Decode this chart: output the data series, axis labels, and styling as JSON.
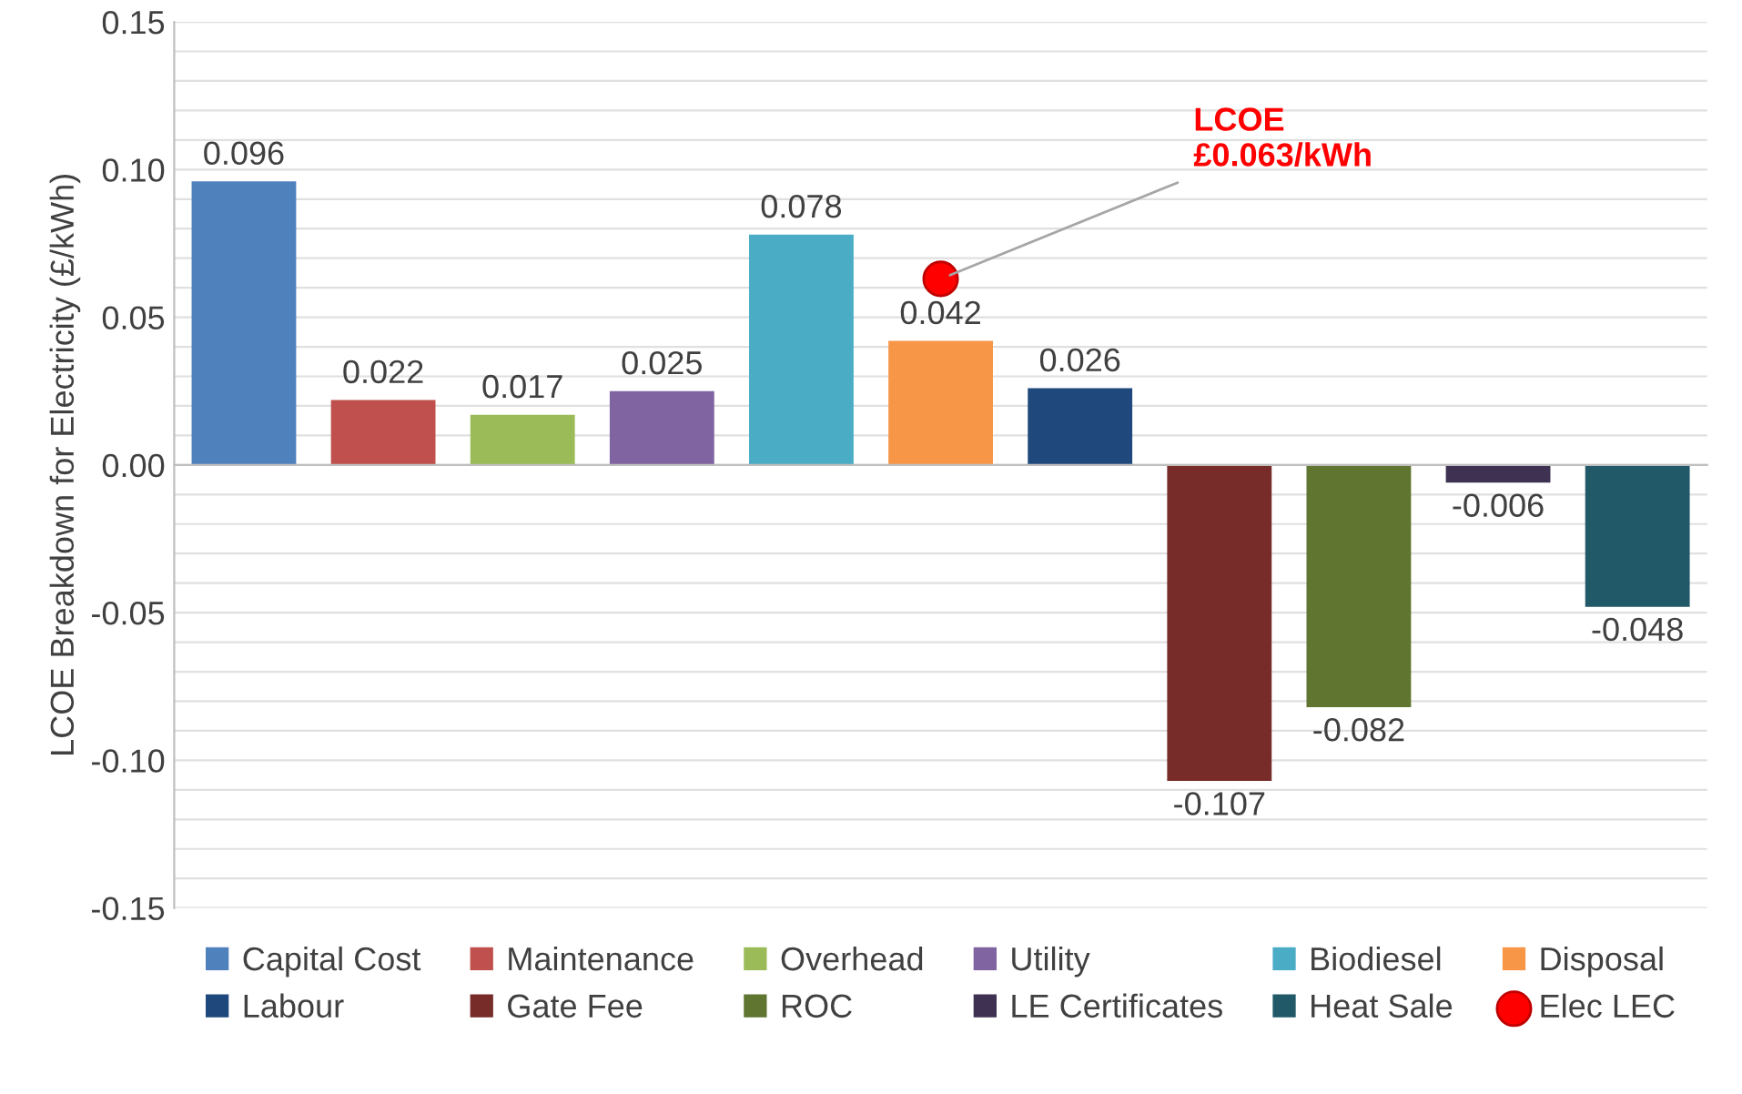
{
  "chart_data": {
    "type": "bar",
    "ylabel": "LCOE Breakdown for Electricity (£/kWh)",
    "categories": [
      null,
      null,
      null,
      null,
      null,
      null,
      null,
      null,
      null,
      null,
      null
    ],
    "series": [
      {
        "name": "Capital Cost",
        "color": "#4f81bd",
        "values": [
          0.096,
          null,
          null,
          null,
          null,
          null,
          null,
          null,
          null,
          null,
          null
        ],
        "value_labels": [
          "0.096",
          null,
          null,
          null,
          null,
          null,
          null,
          null,
          null,
          null,
          null
        ]
      },
      {
        "name": "Maintenance",
        "color": "#c0504d",
        "values": [
          null,
          0.022,
          null,
          null,
          null,
          null,
          null,
          null,
          null,
          null,
          null
        ],
        "value_labels": [
          null,
          "0.022",
          null,
          null,
          null,
          null,
          null,
          null,
          null,
          null,
          null
        ]
      },
      {
        "name": "Overhead",
        "color": "#9bbb59",
        "values": [
          null,
          null,
          0.017,
          null,
          null,
          null,
          null,
          null,
          null,
          null,
          null
        ],
        "value_labels": [
          null,
          null,
          "0.017",
          null,
          null,
          null,
          null,
          null,
          null,
          null,
          null
        ]
      },
      {
        "name": "Utility",
        "color": "#8064a2",
        "values": [
          null,
          null,
          null,
          0.025,
          null,
          null,
          null,
          null,
          null,
          null,
          null
        ],
        "value_labels": [
          null,
          null,
          null,
          "0.025",
          null,
          null,
          null,
          null,
          null,
          null,
          null
        ]
      },
      {
        "name": "Biodiesel",
        "color": "#4bacc6",
        "values": [
          null,
          null,
          null,
          null,
          0.078,
          null,
          null,
          null,
          null,
          null,
          null
        ],
        "value_labels": [
          null,
          null,
          null,
          null,
          "0.078",
          null,
          null,
          null,
          null,
          null,
          null
        ]
      },
      {
        "name": "Disposal",
        "color": "#f79646",
        "values": [
          null,
          null,
          null,
          null,
          null,
          0.042,
          null,
          null,
          null,
          null,
          null
        ],
        "value_labels": [
          null,
          null,
          null,
          null,
          null,
          "0.042",
          null,
          null,
          null,
          null,
          null
        ]
      },
      {
        "name": "Labour",
        "color": "#1f497d",
        "values": [
          null,
          null,
          null,
          null,
          null,
          null,
          0.026,
          null,
          null,
          null,
          null
        ],
        "value_labels": [
          null,
          null,
          null,
          null,
          null,
          null,
          "0.026",
          null,
          null,
          null,
          null
        ]
      },
      {
        "name": "Gate Fee",
        "color": "#772c2a",
        "values": [
          null,
          null,
          null,
          null,
          null,
          null,
          null,
          -0.107,
          null,
          null,
          null
        ],
        "value_labels": [
          null,
          null,
          null,
          null,
          null,
          null,
          null,
          "-0.107",
          null,
          null,
          null
        ]
      },
      {
        "name": "ROC",
        "color": "#5f7530",
        "values": [
          null,
          null,
          null,
          null,
          null,
          null,
          null,
          null,
          -0.082,
          null,
          null
        ],
        "value_labels": [
          null,
          null,
          null,
          null,
          null,
          null,
          null,
          null,
          "-0.082",
          null,
          null
        ]
      },
      {
        "name": "LE Certificates",
        "color": "#3f3151",
        "values": [
          null,
          null,
          null,
          null,
          null,
          null,
          null,
          null,
          null,
          -0.006,
          null
        ],
        "value_labels": [
          null,
          null,
          null,
          null,
          null,
          null,
          null,
          null,
          null,
          "-0.006",
          null
        ]
      },
      {
        "name": "Heat Sale",
        "color": "#215968",
        "values": [
          null,
          null,
          null,
          null,
          null,
          null,
          null,
          null,
          null,
          null,
          -0.048
        ],
        "value_labels": [
          null,
          null,
          null,
          null,
          null,
          null,
          null,
          null,
          null,
          null,
          "-0.048"
        ]
      },
      {
        "name": "Elec LEC",
        "type": "scatter",
        "color": "#ff0000",
        "marker": "circle",
        "values": [
          null,
          null,
          null,
          null,
          null,
          0.063,
          null,
          null,
          null,
          null,
          null
        ]
      }
    ],
    "annotations": [
      "LCOE\n£0.063/kWh"
    ],
    "ylim": [
      -0.15,
      0.15
    ],
    "yticks": [
      {
        "value": -0.15,
        "label": "-0.15"
      },
      {
        "value": -0.14,
        "label": null
      },
      {
        "value": -0.13,
        "label": null
      },
      {
        "value": -0.12,
        "label": null
      },
      {
        "value": -0.11,
        "label": null
      },
      {
        "value": -0.1,
        "label": "-0.10"
      },
      {
        "value": -0.09,
        "label": null
      },
      {
        "value": -0.08,
        "label": null
      },
      {
        "value": -0.07,
        "label": null
      },
      {
        "value": -0.06,
        "label": null
      },
      {
        "value": -0.05,
        "label": "-0.05"
      },
      {
        "value": -0.04,
        "label": null
      },
      {
        "value": -0.03,
        "label": null
      },
      {
        "value": -0.02,
        "label": null
      },
      {
        "value": -0.01,
        "label": null
      },
      {
        "value": 0.0,
        "label": "0.00"
      },
      {
        "value": 0.01,
        "label": null
      },
      {
        "value": 0.02,
        "label": null
      },
      {
        "value": 0.03,
        "label": null
      },
      {
        "value": 0.04,
        "label": null
      },
      {
        "value": 0.05,
        "label": "0.05"
      },
      {
        "value": 0.06,
        "label": null
      },
      {
        "value": 0.07,
        "label": null
      },
      {
        "value": 0.08,
        "label": null
      },
      {
        "value": 0.09,
        "label": null
      },
      {
        "value": 0.1,
        "label": "0.10"
      },
      {
        "value": 0.11,
        "label": null
      },
      {
        "value": 0.12,
        "label": null
      },
      {
        "value": 0.13,
        "label": null
      },
      {
        "value": 0.14,
        "label": null
      },
      {
        "value": 0.15,
        "label": "0.15"
      }
    ],
    "grid": "y",
    "legend": "bottom"
  }
}
